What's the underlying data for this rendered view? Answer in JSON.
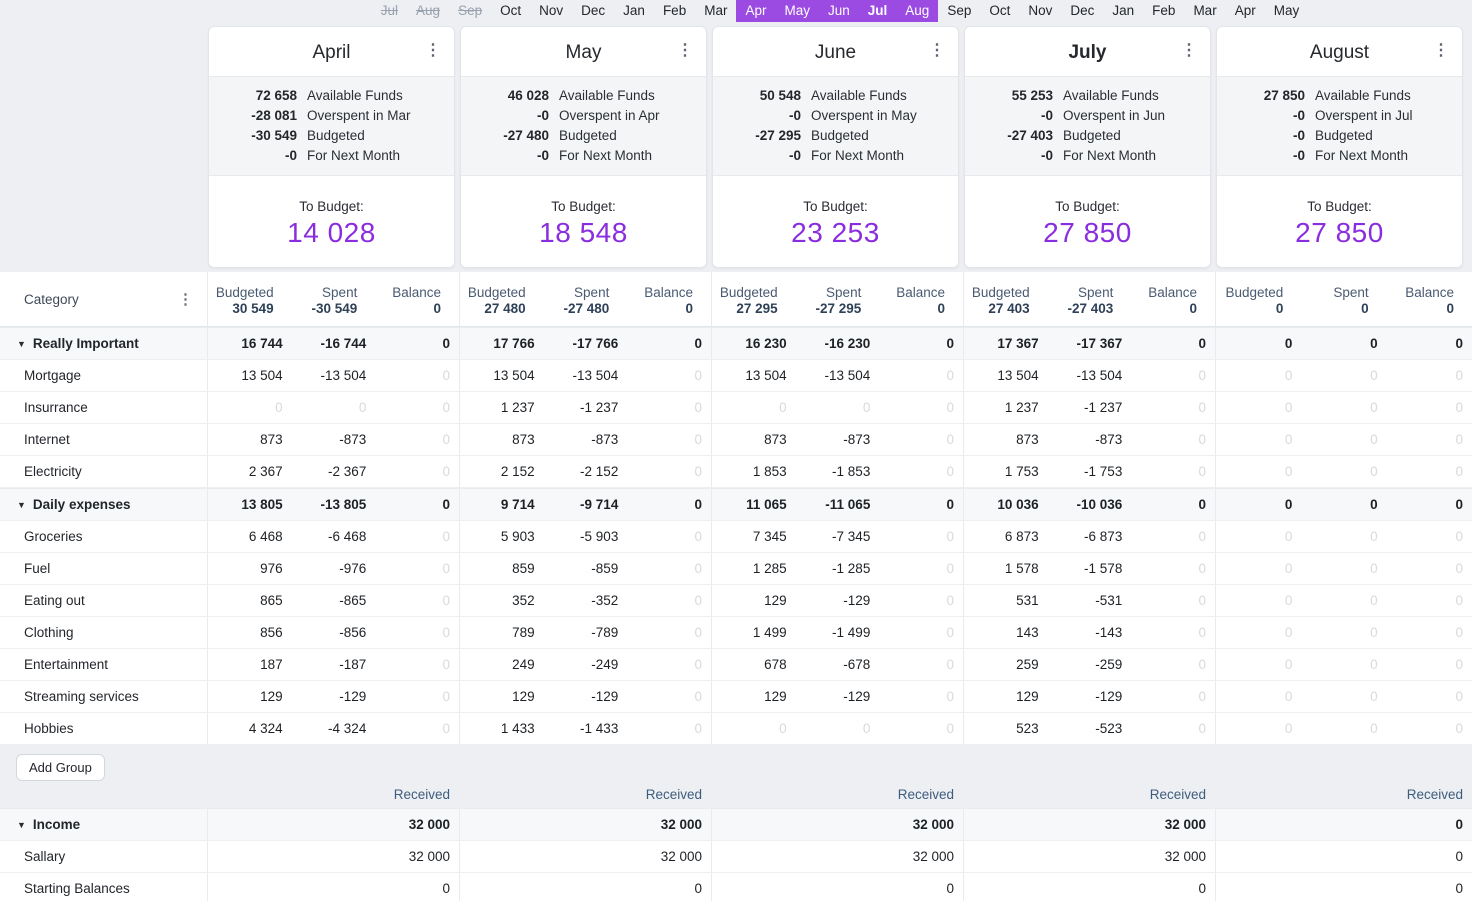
{
  "colors": {
    "timeline_selected_bg": "#9b4be1",
    "to_budget_purple": "#8a2dde",
    "received_blue": "#3e5c7e",
    "header_slate": "#4a5a72",
    "muted_value": "#d6dade",
    "page_background": "#edeff2"
  },
  "timeline": {
    "months": [
      {
        "label": "Jul",
        "state": "struck"
      },
      {
        "label": "Aug",
        "state": "struck"
      },
      {
        "label": "Sep",
        "state": "struck"
      },
      {
        "label": "Oct",
        "state": "normal"
      },
      {
        "label": "Nov",
        "state": "normal"
      },
      {
        "label": "Dec",
        "state": "normal"
      },
      {
        "label": "Jan",
        "state": "normal"
      },
      {
        "label": "Feb",
        "state": "normal"
      },
      {
        "label": "Mar",
        "state": "normal"
      },
      {
        "label": "Apr",
        "state": "selected"
      },
      {
        "label": "May",
        "state": "selected"
      },
      {
        "label": "Jun",
        "state": "selected"
      },
      {
        "label": "Jul",
        "state": "selected-current"
      },
      {
        "label": "Aug",
        "state": "selected"
      },
      {
        "label": "Sep",
        "state": "normal"
      },
      {
        "label": "Oct",
        "state": "normal"
      },
      {
        "label": "Nov",
        "state": "normal"
      },
      {
        "label": "Dec",
        "state": "normal"
      },
      {
        "label": "Jan",
        "state": "normal"
      },
      {
        "label": "Feb",
        "state": "normal"
      },
      {
        "label": "Mar",
        "state": "normal"
      },
      {
        "label": "Apr",
        "state": "normal"
      },
      {
        "label": "May",
        "state": "normal"
      }
    ]
  },
  "cards": [
    {
      "title": "April",
      "is_current": false,
      "menu_icon": "kebab-menu",
      "lines": [
        {
          "value": "72 658",
          "label": "Available Funds"
        },
        {
          "value": "-28 081",
          "label": "Overspent in Mar"
        },
        {
          "value": "-30 549",
          "label": "Budgeted"
        },
        {
          "value": "-0",
          "label": "For Next Month"
        }
      ],
      "to_budget_label": "To Budget:",
      "to_budget_value": "14 028"
    },
    {
      "title": "May",
      "is_current": false,
      "menu_icon": "kebab-menu",
      "lines": [
        {
          "value": "46 028",
          "label": "Available Funds"
        },
        {
          "value": "-0",
          "label": "Overspent in Apr"
        },
        {
          "value": "-27 480",
          "label": "Budgeted"
        },
        {
          "value": "-0",
          "label": "For Next Month"
        }
      ],
      "to_budget_label": "To Budget:",
      "to_budget_value": "18 548"
    },
    {
      "title": "June",
      "is_current": false,
      "menu_icon": "kebab-menu",
      "lines": [
        {
          "value": "50 548",
          "label": "Available Funds"
        },
        {
          "value": "-0",
          "label": "Overspent in May"
        },
        {
          "value": "-27 295",
          "label": "Budgeted"
        },
        {
          "value": "-0",
          "label": "For Next Month"
        }
      ],
      "to_budget_label": "To Budget:",
      "to_budget_value": "23 253"
    },
    {
      "title": "July",
      "is_current": true,
      "menu_icon": "kebab-menu",
      "lines": [
        {
          "value": "55 253",
          "label": "Available Funds"
        },
        {
          "value": "-0",
          "label": "Overspent in Jun"
        },
        {
          "value": "-27 403",
          "label": "Budgeted"
        },
        {
          "value": "-0",
          "label": "For Next Month"
        }
      ],
      "to_budget_label": "To Budget:",
      "to_budget_value": "27 850"
    },
    {
      "title": "August",
      "is_current": false,
      "menu_icon": "kebab-menu",
      "lines": [
        {
          "value": "27 850",
          "label": "Available Funds"
        },
        {
          "value": "-0",
          "label": "Overspent in Jul"
        },
        {
          "value": "-0",
          "label": "Budgeted"
        },
        {
          "value": "-0",
          "label": "For Next Month"
        }
      ],
      "to_budget_label": "To Budget:",
      "to_budget_value": "27 850"
    }
  ],
  "table": {
    "category_header": "Category",
    "category_menu_icon": "kebab-menu",
    "col_labels": [
      "Budgeted",
      "Spent",
      "Balance"
    ],
    "month_totals": [
      [
        "30 549",
        "-30 549",
        "0"
      ],
      [
        "27 480",
        "-27 480",
        "0"
      ],
      [
        "27 295",
        "-27 295",
        "0"
      ],
      [
        "27 403",
        "-27 403",
        "0"
      ],
      [
        "0",
        "0",
        "0"
      ]
    ],
    "groups": [
      {
        "name": "Really Important",
        "totals": [
          [
            "16 744",
            "-16 744",
            "0"
          ],
          [
            "17 766",
            "-17 766",
            "0"
          ],
          [
            "16 230",
            "-16 230",
            "0"
          ],
          [
            "17 367",
            "-17 367",
            "0"
          ],
          [
            "0",
            "0",
            "0"
          ]
        ],
        "rows": [
          {
            "name": "Mortgage",
            "cells": [
              [
                "13 504",
                "-13 504",
                "0"
              ],
              [
                "13 504",
                "-13 504",
                "0"
              ],
              [
                "13 504",
                "-13 504",
                "0"
              ],
              [
                "13 504",
                "-13 504",
                "0"
              ],
              [
                "0",
                "0",
                "0"
              ]
            ]
          },
          {
            "name": "Insurrance",
            "cells": [
              [
                "0",
                "0",
                "0"
              ],
              [
                "1 237",
                "-1 237",
                "0"
              ],
              [
                "0",
                "0",
                "0"
              ],
              [
                "1 237",
                "-1 237",
                "0"
              ],
              [
                "0",
                "0",
                "0"
              ]
            ]
          },
          {
            "name": "Internet",
            "cells": [
              [
                "873",
                "-873",
                "0"
              ],
              [
                "873",
                "-873",
                "0"
              ],
              [
                "873",
                "-873",
                "0"
              ],
              [
                "873",
                "-873",
                "0"
              ],
              [
                "0",
                "0",
                "0"
              ]
            ]
          },
          {
            "name": "Electricity",
            "cells": [
              [
                "2 367",
                "-2 367",
                "0"
              ],
              [
                "2 152",
                "-2 152",
                "0"
              ],
              [
                "1 853",
                "-1 853",
                "0"
              ],
              [
                "1 753",
                "-1 753",
                "0"
              ],
              [
                "0",
                "0",
                "0"
              ]
            ]
          }
        ]
      },
      {
        "name": "Daily expenses",
        "totals": [
          [
            "13 805",
            "-13 805",
            "0"
          ],
          [
            "9 714",
            "-9 714",
            "0"
          ],
          [
            "11 065",
            "-11 065",
            "0"
          ],
          [
            "10 036",
            "-10 036",
            "0"
          ],
          [
            "0",
            "0",
            "0"
          ]
        ],
        "rows": [
          {
            "name": "Groceries",
            "cells": [
              [
                "6 468",
                "-6 468",
                "0"
              ],
              [
                "5 903",
                "-5 903",
                "0"
              ],
              [
                "7 345",
                "-7 345",
                "0"
              ],
              [
                "6 873",
                "-6 873",
                "0"
              ],
              [
                "0",
                "0",
                "0"
              ]
            ]
          },
          {
            "name": "Fuel",
            "cells": [
              [
                "976",
                "-976",
                "0"
              ],
              [
                "859",
                "-859",
                "0"
              ],
              [
                "1 285",
                "-1 285",
                "0"
              ],
              [
                "1 578",
                "-1 578",
                "0"
              ],
              [
                "0",
                "0",
                "0"
              ]
            ]
          },
          {
            "name": "Eating out",
            "cells": [
              [
                "865",
                "-865",
                "0"
              ],
              [
                "352",
                "-352",
                "0"
              ],
              [
                "129",
                "-129",
                "0"
              ],
              [
                "531",
                "-531",
                "0"
              ],
              [
                "0",
                "0",
                "0"
              ]
            ]
          },
          {
            "name": "Clothing",
            "cells": [
              [
                "856",
                "-856",
                "0"
              ],
              [
                "789",
                "-789",
                "0"
              ],
              [
                "1 499",
                "-1 499",
                "0"
              ],
              [
                "143",
                "-143",
                "0"
              ],
              [
                "0",
                "0",
                "0"
              ]
            ]
          },
          {
            "name": "Entertainment",
            "cells": [
              [
                "187",
                "-187",
                "0"
              ],
              [
                "249",
                "-249",
                "0"
              ],
              [
                "678",
                "-678",
                "0"
              ],
              [
                "259",
                "-259",
                "0"
              ],
              [
                "0",
                "0",
                "0"
              ]
            ]
          },
          {
            "name": "Streaming services",
            "cells": [
              [
                "129",
                "-129",
                "0"
              ],
              [
                "129",
                "-129",
                "0"
              ],
              [
                "129",
                "-129",
                "0"
              ],
              [
                "129",
                "-129",
                "0"
              ],
              [
                "0",
                "0",
                "0"
              ]
            ]
          },
          {
            "name": "Hobbies",
            "cells": [
              [
                "4 324",
                "-4 324",
                "0"
              ],
              [
                "1 433",
                "-1 433",
                "0"
              ],
              [
                "0",
                "0",
                "0"
              ],
              [
                "523",
                "-523",
                "0"
              ],
              [
                "0",
                "0",
                "0"
              ]
            ]
          }
        ]
      }
    ]
  },
  "footer": {
    "add_group_label": "Add Group",
    "received_label": "Received",
    "income_group": {
      "name": "Income",
      "values": [
        "32 000",
        "32 000",
        "32 000",
        "32 000",
        "0"
      ]
    },
    "income_rows": [
      {
        "name": "Sallary",
        "values": [
          "32 000",
          "32 000",
          "32 000",
          "32 000",
          "0"
        ]
      },
      {
        "name": "Starting Balances",
        "values": [
          "0",
          "0",
          "0",
          "0",
          "0"
        ]
      }
    ]
  }
}
